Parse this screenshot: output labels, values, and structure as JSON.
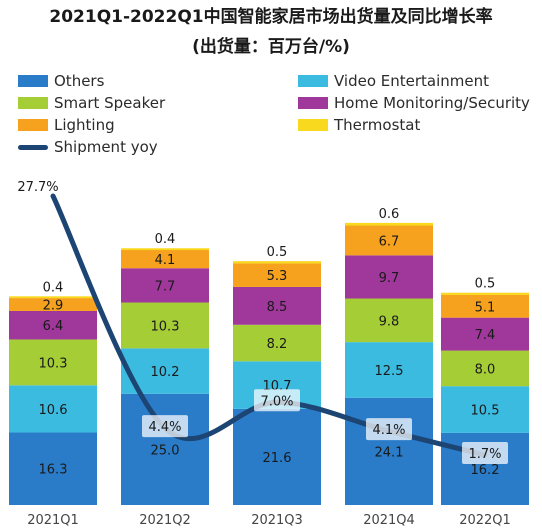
{
  "chart_data": {
    "type": "bar",
    "title": "2021Q1-2022Q1中国智能家居市场出货量及同比增长率",
    "subtitle": "(出货量：百万台/%)",
    "categories": [
      "2021Q1",
      "2021Q2",
      "2021Q3",
      "2021Q4",
      "2022Q1"
    ],
    "stacked": true,
    "series": [
      {
        "name": "Others",
        "color": "#2a7cc9",
        "values": [
          16.3,
          25.0,
          21.6,
          24.1,
          16.2
        ]
      },
      {
        "name": "Video Entertainment",
        "color": "#3cbbe0",
        "values": [
          10.6,
          10.2,
          10.7,
          12.5,
          10.5
        ]
      },
      {
        "name": "Smart Speaker",
        "color": "#a5cd36",
        "values": [
          10.3,
          10.3,
          8.2,
          9.8,
          8.0
        ]
      },
      {
        "name": "Home Monitoring/Security",
        "color": "#a0379b",
        "values": [
          6.4,
          7.7,
          8.5,
          9.7,
          7.4
        ]
      },
      {
        "name": "Lighting",
        "color": "#f7a21f",
        "values": [
          2.9,
          4.1,
          5.3,
          6.7,
          5.1
        ]
      },
      {
        "name": "Thermostat",
        "color": "#f9d91e",
        "values": [
          0.4,
          0.4,
          0.5,
          0.6,
          0.5
        ]
      }
    ],
    "line_series": {
      "name": "Shipment yoy",
      "color": "#1c4573",
      "values": [
        27.7,
        4.4,
        7.0,
        4.1,
        1.7
      ],
      "labels": [
        "27.7%",
        "4.4%",
        "7.0%",
        "4.1%",
        "1.7%"
      ]
    },
    "legend_position": "top",
    "grid": false
  }
}
